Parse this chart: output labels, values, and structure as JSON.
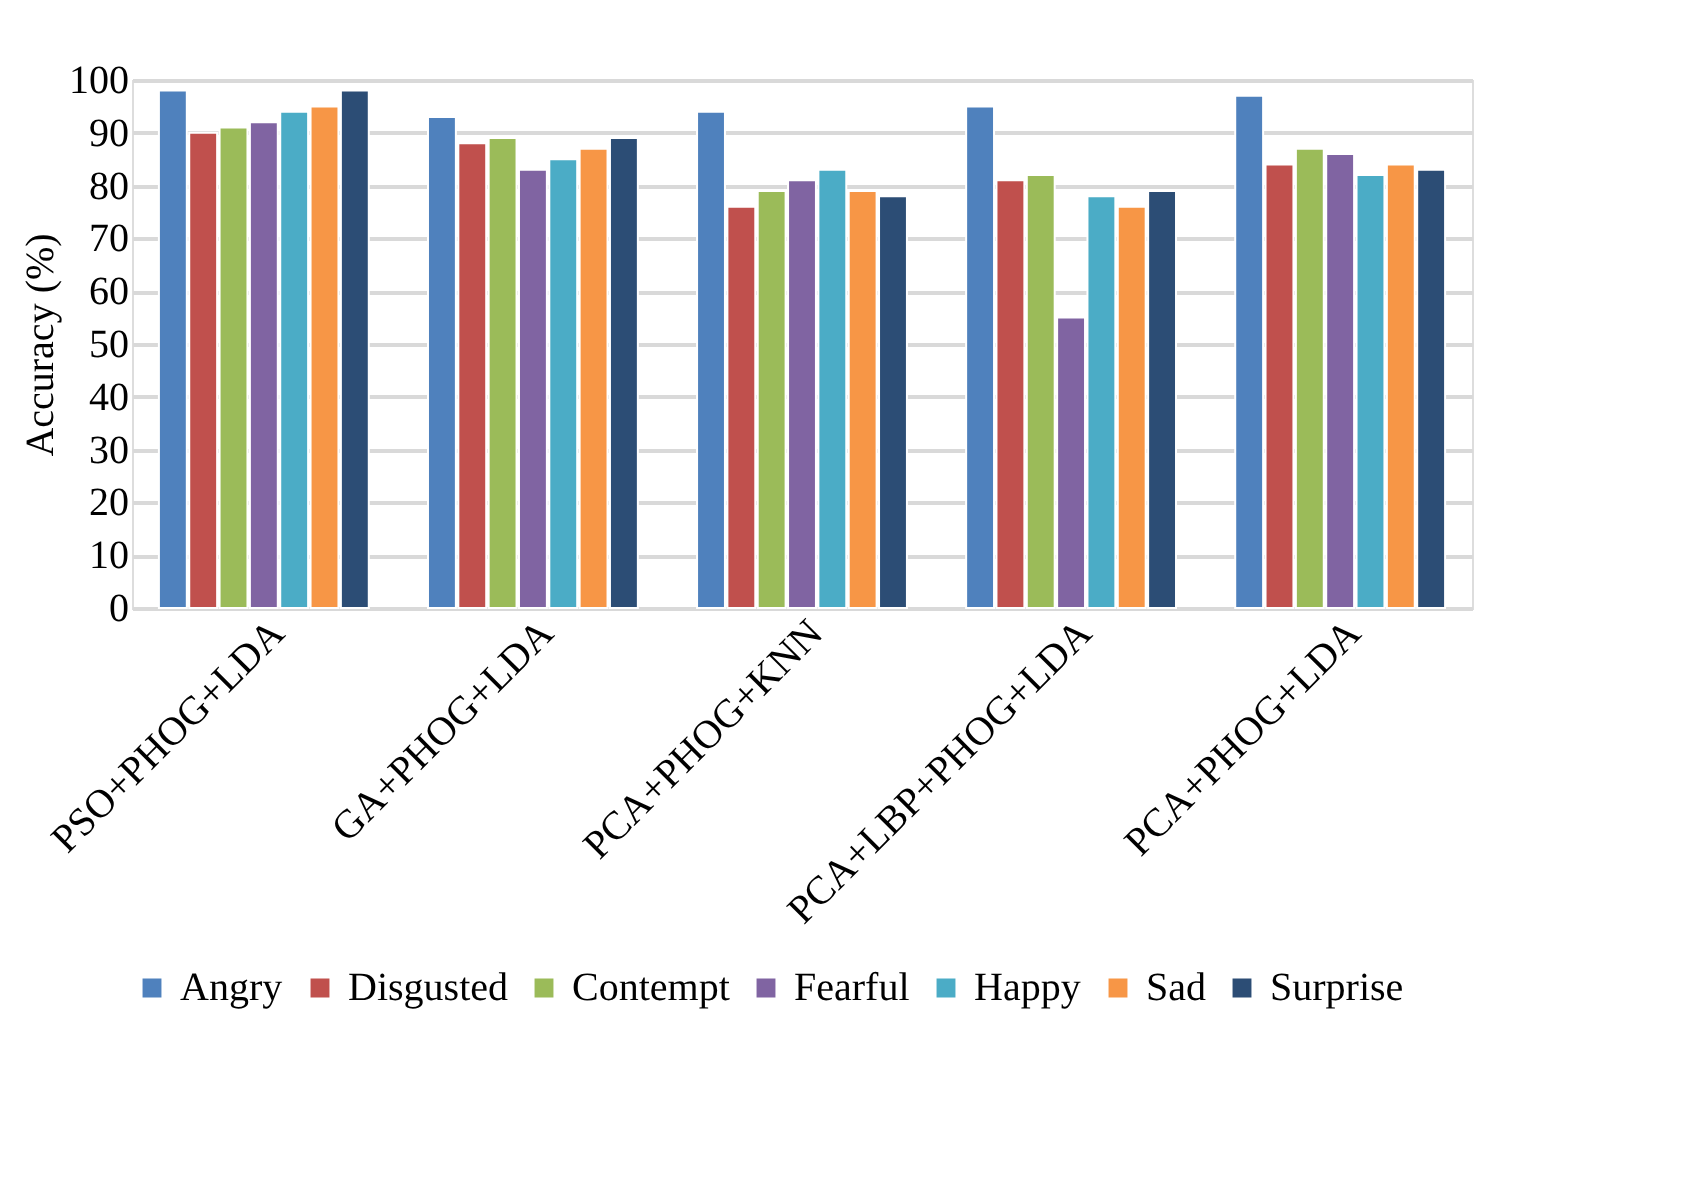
{
  "chart_data": {
    "type": "bar",
    "ylabel": "Accuracy (%)",
    "categories": [
      "PSO+PHOG+LDA",
      "GA+PHOG+LDA",
      "PCA+PHOG+KNN",
      "PCA+LBP+PHOG+LDA",
      "PCA+PHOG+LDA"
    ],
    "series": [
      {
        "name": "Angry",
        "color": "#4f81bd",
        "values": [
          98,
          93,
          94,
          95,
          97
        ]
      },
      {
        "name": "Disgusted",
        "color": "#c0504d",
        "values": [
          90,
          88,
          76,
          81,
          84
        ]
      },
      {
        "name": "Contempt",
        "color": "#9bbb59",
        "values": [
          91,
          89,
          79,
          82,
          87
        ]
      },
      {
        "name": "Fearful",
        "color": "#8064a2",
        "values": [
          92,
          83,
          81,
          55,
          86
        ]
      },
      {
        "name": "Happy",
        "color": "#4bacc6",
        "values": [
          94,
          85,
          83,
          78,
          82
        ]
      },
      {
        "name": "Sad",
        "color": "#f79646",
        "values": [
          95,
          87,
          79,
          76,
          84
        ]
      },
      {
        "name": "Surprise",
        "color": "#2c4d75",
        "values": [
          98,
          89,
          78,
          79,
          83
        ]
      }
    ],
    "ylim": [
      0,
      100
    ],
    "yticks": [
      0,
      10,
      20,
      30,
      40,
      50,
      60,
      70,
      80,
      90,
      100
    ],
    "grid": "y",
    "legend": "bottom"
  }
}
